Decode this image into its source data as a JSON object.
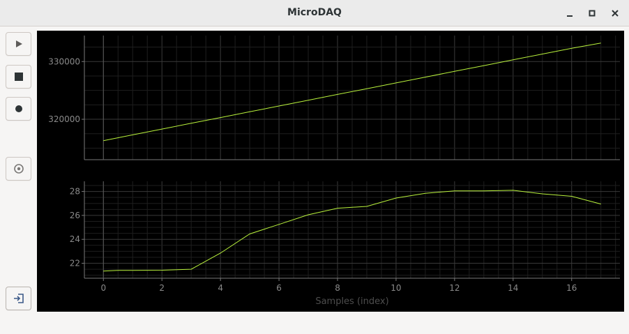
{
  "window": {
    "title": "MicroDAQ"
  },
  "toolbar": {
    "buttons": [
      {
        "name": "play-button",
        "icon": "play-icon"
      },
      {
        "name": "stop-button",
        "icon": "stop-icon"
      },
      {
        "name": "record-button",
        "icon": "record-icon"
      },
      {
        "name": "settings-button",
        "icon": "target-icon"
      },
      {
        "name": "export-button",
        "icon": "login-icon"
      }
    ]
  },
  "chart_data": [
    {
      "type": "line",
      "x": [
        0,
        1,
        2,
        3,
        4,
        5,
        6,
        7,
        8,
        9,
        10,
        11,
        12,
        13,
        14,
        15,
        16,
        17
      ],
      "series": [
        {
          "values": [
            316300,
            317300,
            318300,
            319300,
            320300,
            321300,
            322300,
            323300,
            324300,
            325300,
            326300,
            327300,
            328300,
            329300,
            330300,
            331300,
            332300,
            333200
          ]
        }
      ],
      "yticks": [
        "320000",
        "330000"
      ],
      "ylim": [
        313000,
        334500
      ],
      "xlim": [
        -0.65,
        17.65
      ],
      "grid": true,
      "line_color": "#b9f23c"
    },
    {
      "type": "line",
      "x": [
        0,
        0.5,
        1,
        2,
        3,
        4,
        5,
        6,
        7,
        8,
        9,
        10,
        11,
        12,
        13,
        14,
        15,
        16,
        17
      ],
      "series": [
        {
          "values": [
            21.35,
            21.4,
            21.4,
            21.42,
            21.5,
            22.85,
            24.45,
            25.25,
            26.05,
            26.6,
            26.75,
            27.45,
            27.85,
            28.05,
            28.05,
            28.1,
            27.8,
            27.6,
            26.95
          ]
        }
      ],
      "yticks": [
        "22",
        "24",
        "26",
        "28"
      ],
      "xticks": [
        "0",
        "2",
        "4",
        "6",
        "8",
        "10",
        "12",
        "14",
        "16"
      ],
      "xlabel": "Samples (index)",
      "ylim": [
        20.75,
        28.85
      ],
      "xlim": [
        -0.65,
        17.65
      ],
      "grid": true,
      "line_color": "#b9f23c"
    }
  ]
}
